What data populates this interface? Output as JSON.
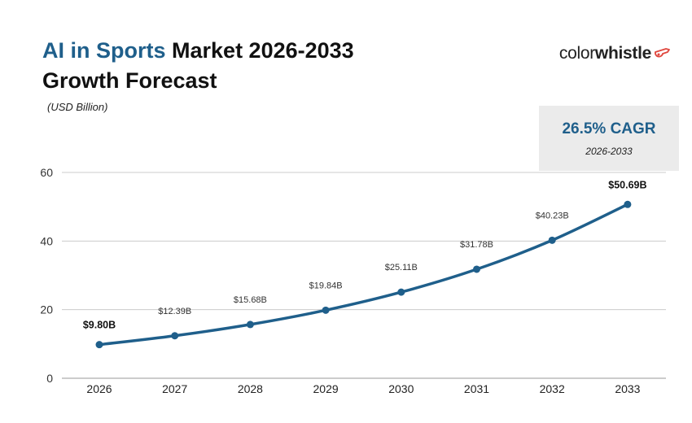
{
  "header": {
    "title_accent": "AI in Sports",
    "title_rest": " Market 2026-2033",
    "title_line2": "Growth Forecast",
    "unit": "(USD Billion)"
  },
  "logo": {
    "text_regular": "color",
    "text_bold": "whistle"
  },
  "cagr": {
    "value": "26.5% CAGR",
    "period": "2026-2033"
  },
  "colors": {
    "accent": "#1f5f8b",
    "line": "#1f5f8b",
    "grid": "#cccccc",
    "box": "#ebebeb"
  },
  "chart_data": {
    "type": "line",
    "title": "AI in Sports Market 2026-2033 Growth Forecast",
    "ylabel": "(USD Billion)",
    "xlabel": "",
    "categories": [
      "2026",
      "2027",
      "2028",
      "2029",
      "2030",
      "2031",
      "2032",
      "2033"
    ],
    "series": [
      {
        "values": [
          9.8,
          12.39,
          15.68,
          19.84,
          25.11,
          31.78,
          40.23,
          50.69
        ],
        "labels": [
          "$9.80B",
          "$12.39B",
          "$15.68B",
          "$19.84B",
          "$25.11B",
          "$31.78B",
          "$40.23B",
          "$50.69B"
        ]
      }
    ],
    "ylim": [
      0,
      60
    ],
    "yticks": [
      0,
      20,
      40,
      60
    ],
    "grid": true,
    "legend": "none"
  }
}
